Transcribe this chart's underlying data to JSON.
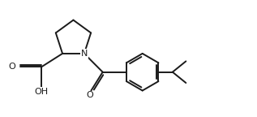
{
  "bg_color": "#ffffff",
  "line_color": "#1a1a1a",
  "line_width": 1.4,
  "figsize": [
    3.17,
    1.44
  ],
  "dpi": 100,
  "xlim": [
    0,
    10
  ],
  "ylim": [
    0,
    4.55
  ]
}
